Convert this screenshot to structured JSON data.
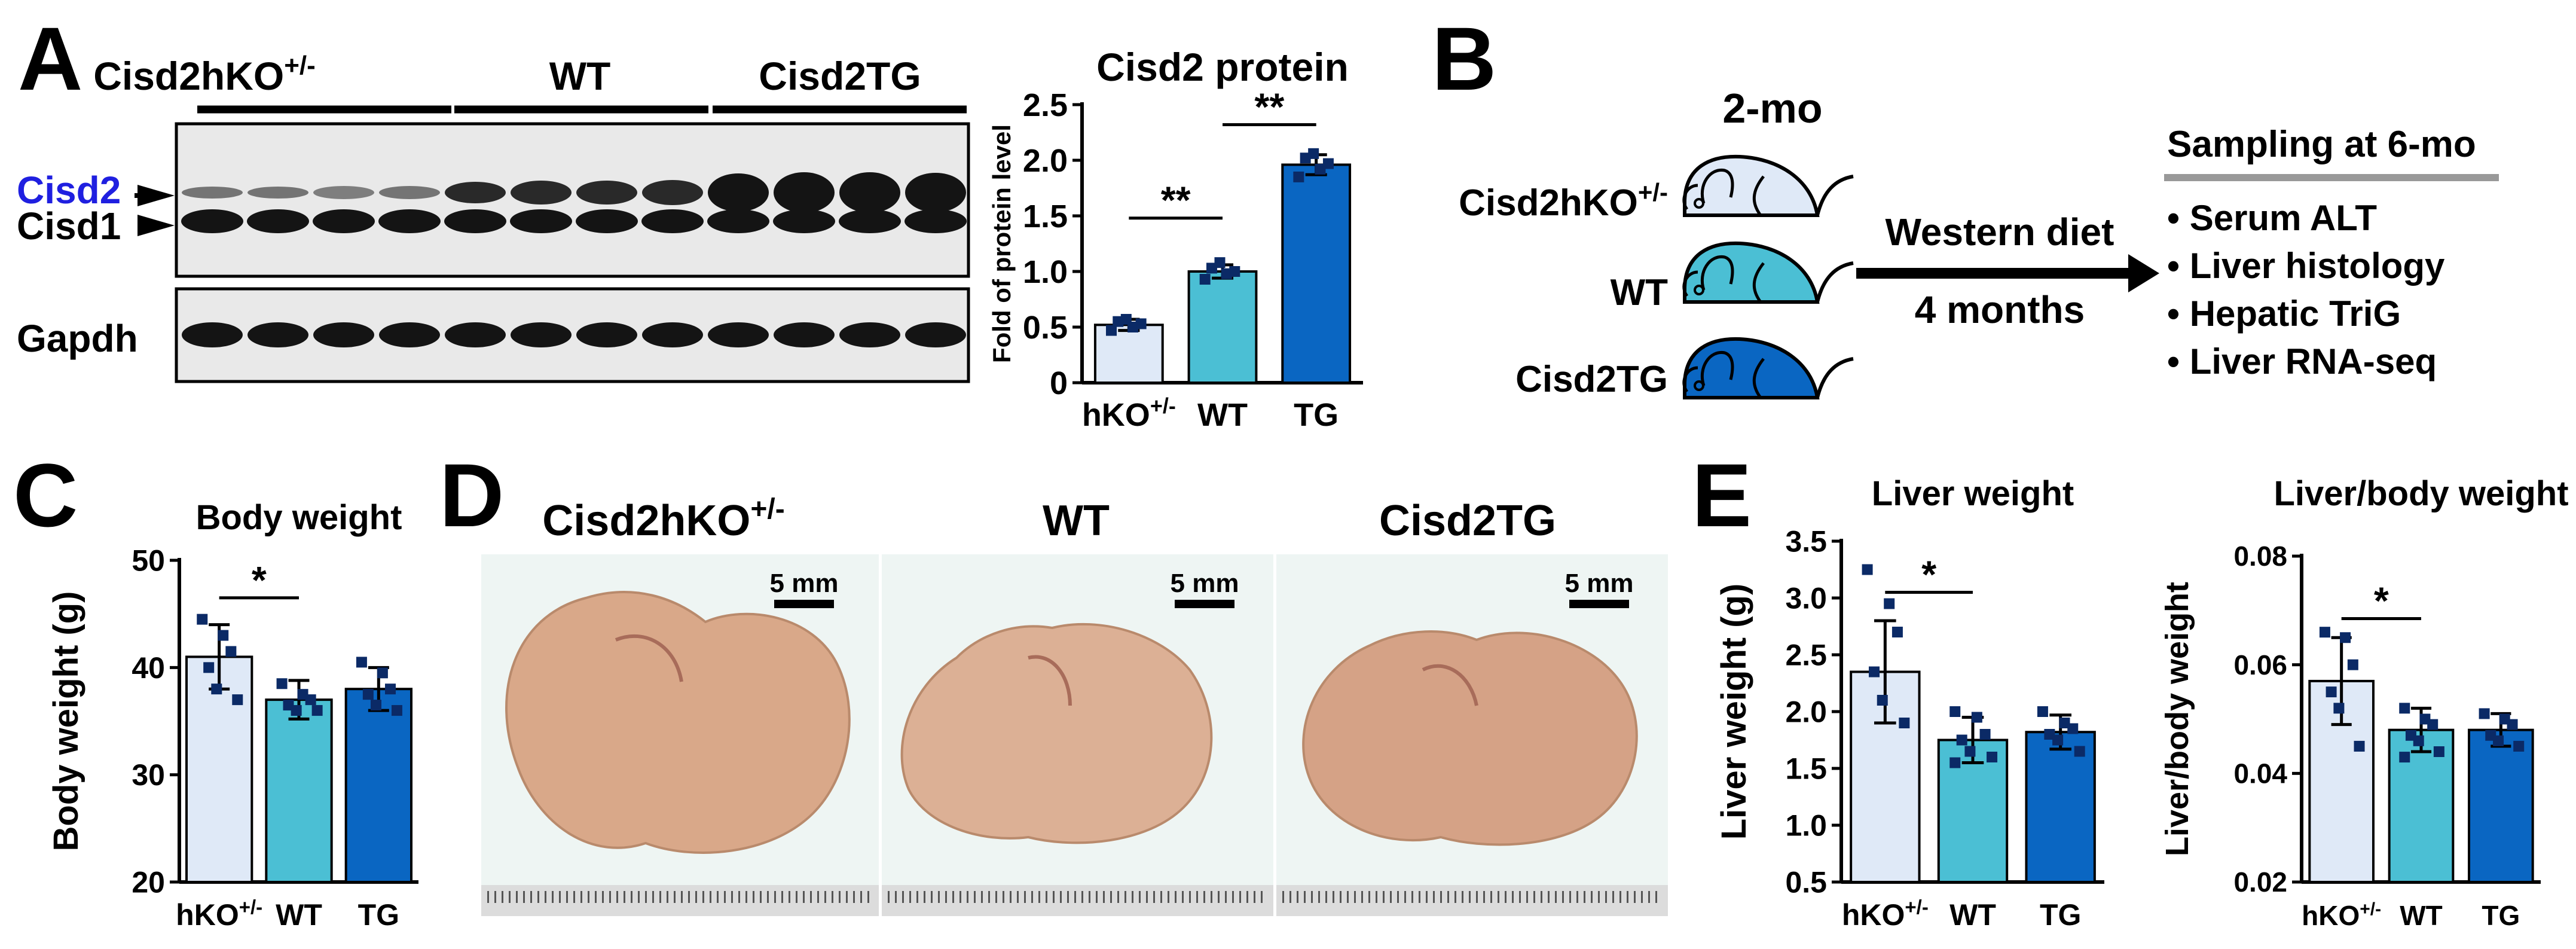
{
  "panel_labels": {
    "a": "A",
    "b": "B",
    "c": "C",
    "d": "D",
    "e": "E"
  },
  "colors": {
    "hko": "#dfe9f7",
    "wt": "#4bbfd4",
    "tg": "#0a66c2",
    "cisd2_label": "#1f1fe0",
    "blot_bg": "#e9e9e9",
    "band": "#141414",
    "liver": "#d9a889"
  },
  "panel_a": {
    "blot": {
      "group_labels": [
        "Cisd2hKO+/-",
        "WT",
        "Cisd2TG"
      ],
      "group_sup": [
        "+/-",
        "",
        ""
      ],
      "band_labels": [
        "Cisd2",
        "Cisd1"
      ],
      "loading_label": "Gapdh",
      "lanes_per_group": 4
    },
    "chart_data": {
      "type": "bar",
      "title": "Cisd2 protein",
      "ylabel": "Fold of protein level",
      "categories": [
        "hKO+/-",
        "WT",
        "TG"
      ],
      "category_main": [
        "hKO",
        "WT",
        "TG"
      ],
      "category_sup": [
        "+/-",
        "",
        ""
      ],
      "values": [
        0.52,
        1.0,
        1.96
      ],
      "errors": [
        0.05,
        0.06,
        0.09
      ],
      "points": [
        [
          0.47,
          0.5,
          0.53,
          0.55,
          0.57
        ],
        [
          0.93,
          0.98,
          1.0,
          1.03,
          1.08
        ],
        [
          1.85,
          1.92,
          1.97,
          2.02,
          2.06
        ]
      ],
      "ylim": [
        0,
        2.5
      ],
      "yticks": [
        0,
        0.5,
        1.0,
        1.5,
        2.0,
        2.5
      ],
      "ytick_labels": [
        "0",
        "0.5",
        "1.0",
        "1.5",
        "2.0",
        "2.5"
      ],
      "significance": [
        {
          "between": [
            0,
            1
          ],
          "label": "**",
          "level": 1.48
        },
        {
          "between": [
            1,
            2
          ],
          "label": "**",
          "level": 2.32
        }
      ]
    }
  },
  "panel_b": {
    "start_label": "2-mo",
    "mice": [
      "Cisd2hKO+/-",
      "WT",
      "Cisd2TG"
    ],
    "mice_main": [
      "Cisd2hKO",
      "WT",
      "Cisd2TG"
    ],
    "mice_sup": [
      "+/-",
      "",
      ""
    ],
    "diet_label": "Western diet",
    "duration_label": "4 months",
    "sampling_title": "Sampling at 6-mo",
    "sampling_items": [
      "Serum ALT",
      "Liver histology",
      "Hepatic TriG",
      "Liver RNA-seq"
    ]
  },
  "panel_c": {
    "chart_data": {
      "type": "bar",
      "title": "Body weight",
      "ylabel": "Body weight (g)",
      "categories": [
        "hKO+/-",
        "WT",
        "TG"
      ],
      "category_main": [
        "hKO",
        "WT",
        "TG"
      ],
      "category_sup": [
        "+/-",
        "",
        ""
      ],
      "values": [
        41.0,
        37.0,
        38.0
      ],
      "errors": [
        3.0,
        1.8,
        2.0
      ],
      "points": [
        [
          44.5,
          43,
          41.5,
          40,
          38,
          37
        ],
        [
          38.5,
          37.5,
          37,
          36.5,
          36,
          36
        ],
        [
          40.5,
          39.5,
          38,
          37.5,
          36.5,
          36
        ]
      ],
      "ylim": [
        20,
        50
      ],
      "yticks": [
        20,
        30,
        40,
        50
      ],
      "ytick_labels": [
        "20",
        "30",
        "40",
        "50"
      ],
      "significance": [
        {
          "between": [
            0,
            1
          ],
          "label": "*",
          "level": 46.5
        }
      ]
    }
  },
  "panel_d": {
    "titles": [
      "Cisd2hKO+/-",
      "WT",
      "Cisd2TG"
    ],
    "titles_main": [
      "Cisd2hKO",
      "WT",
      "Cisd2TG"
    ],
    "titles_sup": [
      "+/-",
      "",
      ""
    ],
    "scale_label": "5 mm"
  },
  "panel_e": {
    "charts": [
      {
        "type": "bar",
        "title": "Liver weight",
        "ylabel": "Liver weight (g)",
        "categories": [
          "hKO+/-",
          "WT",
          "TG"
        ],
        "category_main": [
          "hKO",
          "WT",
          "TG"
        ],
        "category_sup": [
          "+/-",
          "",
          ""
        ],
        "values": [
          2.35,
          1.75,
          1.82
        ],
        "errors": [
          0.45,
          0.2,
          0.15
        ],
        "points": [
          [
            3.25,
            2.95,
            2.7,
            2.35,
            2.1,
            1.9
          ],
          [
            2.0,
            1.95,
            1.8,
            1.75,
            1.65,
            1.6,
            1.55
          ],
          [
            2.0,
            1.9,
            1.85,
            1.8,
            1.75,
            1.65
          ]
        ],
        "ylim": [
          0.5,
          3.5
        ],
        "yticks": [
          0.5,
          1.0,
          1.5,
          2.0,
          2.5,
          3.0,
          3.5
        ],
        "ytick_labels": [
          "0.5",
          "1.0",
          "1.5",
          "2.0",
          "2.5",
          "3.0",
          "3.5"
        ],
        "significance": [
          {
            "between": [
              0,
              1
            ],
            "label": "*",
            "level": 3.05
          }
        ]
      },
      {
        "type": "bar",
        "title": "Liver/body weight",
        "ylabel": "Liver/body weight",
        "categories": [
          "hKO+/-",
          "WT",
          "TG"
        ],
        "category_main": [
          "hKO",
          "WT",
          "TG"
        ],
        "category_sup": [
          "+/-",
          "",
          ""
        ],
        "values": [
          0.057,
          0.048,
          0.048
        ],
        "errors": [
          0.008,
          0.004,
          0.003
        ],
        "points": [
          [
            0.066,
            0.065,
            0.06,
            0.055,
            0.052,
            0.045
          ],
          [
            0.052,
            0.05,
            0.049,
            0.047,
            0.046,
            0.044,
            0.043
          ],
          [
            0.051,
            0.05,
            0.049,
            0.047,
            0.046,
            0.045
          ]
        ],
        "ylim": [
          0.02,
          0.08
        ],
        "yticks": [
          0.02,
          0.04,
          0.06,
          0.08
        ],
        "ytick_labels": [
          "0.02",
          "0.04",
          "0.06",
          "0.08"
        ],
        "significance": [
          {
            "between": [
              0,
              1
            ],
            "label": "*",
            "level": 0.0685
          }
        ]
      }
    ]
  }
}
